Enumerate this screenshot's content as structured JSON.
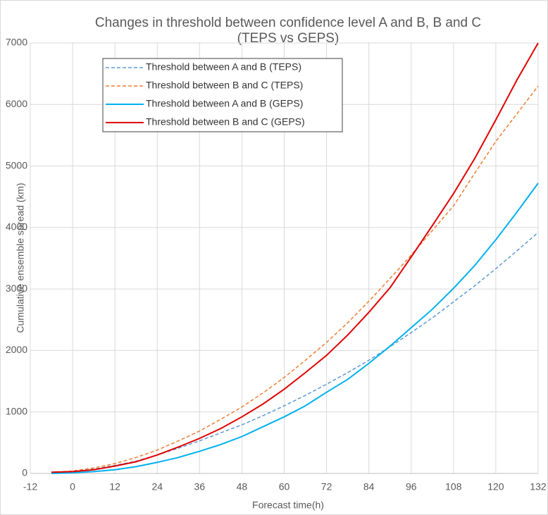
{
  "chart_data": {
    "type": "line",
    "title": [
      "Changes in threshold between confidence level A and B, B and C",
      "(TEPS vs GEPS)"
    ],
    "x_label": "Forecast time(h)",
    "y_label": "Cumulative ensemble spread (km)",
    "x": [
      -6,
      0,
      6,
      12,
      18,
      24,
      30,
      36,
      42,
      48,
      54,
      60,
      66,
      72,
      78,
      84,
      90,
      96,
      102,
      108,
      114,
      120,
      126,
      132
    ],
    "series": [
      {
        "name": "Threshold between A and B (TEPS)",
        "color": "#5b9bd5",
        "dashed": true,
        "values": [
          10,
          30,
          70,
          130,
          200,
          300,
          410,
          530,
          660,
          790,
          940,
          1100,
          1270,
          1450,
          1640,
          1840,
          2060,
          2290,
          2530,
          2790,
          3050,
          3330,
          3620,
          3920
        ]
      },
      {
        "name": "Threshold between B and C (TEPS)",
        "color": "#ed7d31",
        "dashed": true,
        "values": [
          15,
          40,
          90,
          160,
          260,
          380,
          530,
          690,
          880,
          1080,
          1310,
          1560,
          1840,
          2130,
          2450,
          2800,
          3170,
          3550,
          3950,
          4350,
          4880,
          5400,
          5850,
          6300
        ]
      },
      {
        "name": "Threshold between A and B (GEPS)",
        "color": "#00b0f0",
        "dashed": false,
        "values": [
          0,
          10,
          30,
          60,
          110,
          180,
          260,
          360,
          470,
          600,
          760,
          920,
          1100,
          1320,
          1530,
          1790,
          2070,
          2370,
          2670,
          3010,
          3380,
          3800,
          4250,
          4720
        ]
      },
      {
        "name": "Threshold between B and C (GEPS)",
        "color": "#e00000",
        "dashed": false,
        "values": [
          20,
          30,
          60,
          120,
          190,
          300,
          430,
          570,
          730,
          920,
          1130,
          1370,
          1640,
          1920,
          2250,
          2620,
          3020,
          3520,
          4030,
          4550,
          5120,
          5750,
          6400,
          7000
        ]
      }
    ],
    "xlim": [
      -12,
      132
    ],
    "xticks": [
      -12,
      0,
      12,
      24,
      36,
      48,
      60,
      72,
      84,
      96,
      108,
      120,
      132
    ],
    "ylim": [
      0,
      7000
    ],
    "yticks": [
      0,
      1000,
      2000,
      3000,
      4000,
      5000,
      6000,
      7000
    ],
    "grid": true,
    "legend": "upper left"
  }
}
